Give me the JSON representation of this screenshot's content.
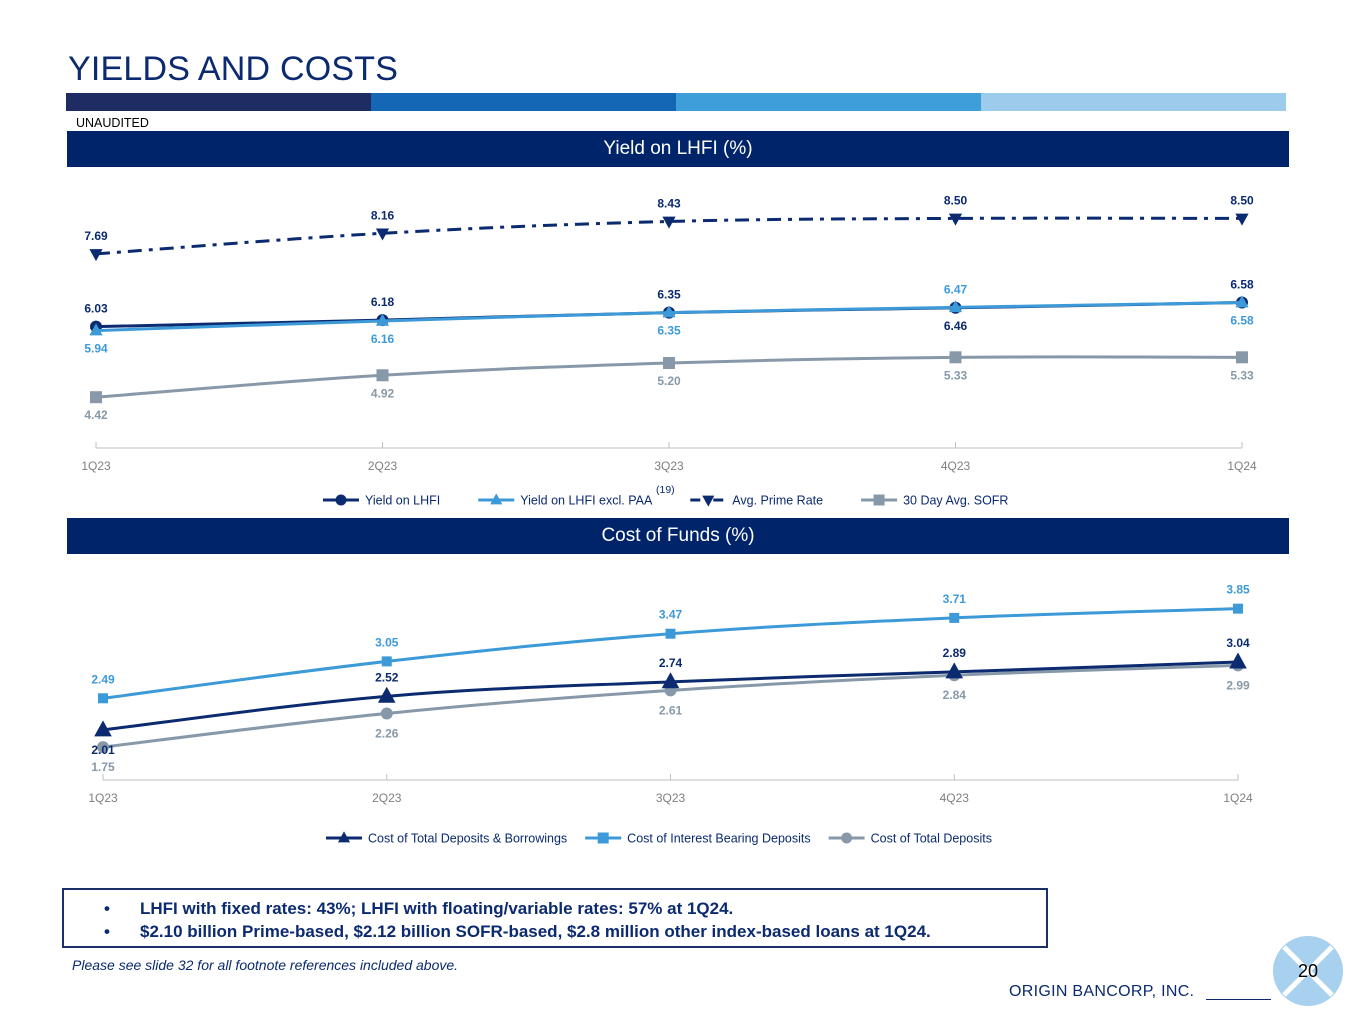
{
  "page": {
    "title": "YIELDS AND COSTS",
    "unaudited": "UNAUDITED",
    "bar_colors": [
      "#1f2b63",
      "#1367b4",
      "#3e9ed9",
      "#9ccbec"
    ],
    "bullets": [
      "LHFI with fixed rates: 43%; LHFI with floating/variable rates: 57% at 1Q24.",
      "$2.10 billion Prime-based, $2.12 billion SOFR-based, $2.8 million other index-based loans at 1Q24."
    ],
    "bullet_symbol": "•",
    "footnote": "Please see slide 32 for all footnote references included above.",
    "page_number": "20",
    "company": "ORIGIN BANCORP, INC."
  },
  "chart_data": [
    {
      "type": "line",
      "title": "Yield on LHFI (%)",
      "categories": [
        "1Q23",
        "2Q23",
        "3Q23",
        "4Q23",
        "1Q24"
      ],
      "ylim": [
        3.5,
        9.0
      ],
      "legend_position": "bottom",
      "legend_footnote": "(19)",
      "series": [
        {
          "name": "Yield on LHFI",
          "values": [
            6.03,
            6.18,
            6.35,
            6.46,
            6.58
          ],
          "labels": [
            "6.03",
            "6.18",
            "6.35",
            "6.46",
            "6.58"
          ],
          "label_pos": [
            "above",
            "above",
            "above",
            "below",
            "above"
          ],
          "color": "#0b2a6f",
          "marker": "circle",
          "dash": "solid"
        },
        {
          "name": "Yield on LHFI excl. PAA",
          "values": [
            5.94,
            6.16,
            6.35,
            6.47,
            6.58
          ],
          "labels": [
            "5.94",
            "6.16",
            "6.35",
            "6.47",
            "6.58"
          ],
          "label_pos": [
            "below",
            "below",
            "below",
            "above",
            "below"
          ],
          "color": "#3d9ad8",
          "marker": "triangle",
          "dash": "solid"
        },
        {
          "name": "Avg. Prime Rate",
          "values": [
            7.69,
            8.16,
            8.43,
            8.5,
            8.5
          ],
          "labels": [
            "7.69",
            "8.16",
            "8.43",
            "8.50",
            "8.50"
          ],
          "label_pos": [
            "above",
            "above",
            "above",
            "above",
            "above"
          ],
          "color": "#0b2a6f",
          "marker": "triangle-down",
          "dash": "dashdot"
        },
        {
          "name": "30 Day Avg. SOFR",
          "values": [
            4.42,
            4.92,
            5.2,
            5.33,
            5.33
          ],
          "labels": [
            "4.42",
            "4.92",
            "5.20",
            "5.33",
            "5.33"
          ],
          "label_pos": [
            "below",
            "below",
            "below",
            "below",
            "below"
          ],
          "color": "#8799a9",
          "marker": "square",
          "dash": "solid"
        }
      ]
    },
    {
      "type": "line",
      "title": "Cost of Funds (%)",
      "categories": [
        "1Q23",
        "2Q23",
        "3Q23",
        "4Q23",
        "1Q24"
      ],
      "ylim": [
        1.0,
        4.3
      ],
      "legend_position": "bottom",
      "series": [
        {
          "name": "Cost of Total Deposits & Borrowings",
          "values": [
            2.01,
            2.52,
            2.74,
            2.89,
            3.04
          ],
          "labels": [
            "2.01",
            "2.52",
            "2.74",
            "2.89",
            "3.04"
          ],
          "label_pos": [
            "below",
            "above",
            "above",
            "above",
            "above"
          ],
          "color": "#0b2a6f",
          "marker": "triangle",
          "dash": "solid"
        },
        {
          "name": "Cost of Interest Bearing Deposits",
          "values": [
            2.49,
            3.05,
            3.47,
            3.71,
            3.85
          ],
          "labels": [
            "2.49",
            "3.05",
            "3.47",
            "3.71",
            "3.85"
          ],
          "label_pos": [
            "above",
            "above",
            "above",
            "above",
            "above"
          ],
          "color": "#3d9ad8",
          "marker": "square",
          "dash": "solid"
        },
        {
          "name": "Cost of Total Deposits",
          "values": [
            1.75,
            2.26,
            2.61,
            2.84,
            2.99
          ],
          "labels": [
            "1.75",
            "2.26",
            "2.61",
            "2.84",
            "2.99"
          ],
          "label_pos": [
            "below",
            "below",
            "below",
            "below",
            "below"
          ],
          "color": "#8799a9",
          "marker": "circle",
          "dash": "solid"
        }
      ]
    }
  ]
}
